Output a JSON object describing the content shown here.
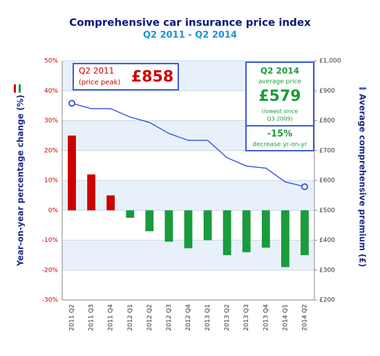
{
  "chart_data": {
    "type": "bar-line",
    "title": "Comprehensive car insurance price index",
    "subtitle": "Q2 2011 - Q2 2014",
    "y_label": "Year-on-year percentage change (%)",
    "y2_label": "Average comprehensive premium (£)",
    "categories": [
      "2011 Q2",
      "2011 Q3",
      "2011 Q4",
      "2012 Q1",
      "2012 Q2",
      "2012 Q3",
      "2012 Q4",
      "2013 Q1",
      "2013 Q2",
      "2013 Q3",
      "2013 Q4",
      "2014 Q1",
      "2014 Q2"
    ],
    "series": [
      {
        "type": "bar",
        "color": "#cc0000",
        "negative_color": "#1a9b3c",
        "values": [
          25,
          12,
          5,
          -2.5,
          -7,
          -10.5,
          -12.7,
          -10,
          -15,
          -14,
          -12.5,
          -19,
          -15
        ]
      },
      {
        "type": "line",
        "axis": "y2",
        "color": "#3b5bdb",
        "values": [
          858,
          840,
          840,
          812,
          794,
          757,
          734,
          734,
          676,
          648,
          641,
          595,
          579
        ]
      }
    ],
    "ylim": [
      -30,
      50
    ],
    "yticks": [
      {
        "value": -30,
        "label": "-30%"
      },
      {
        "value": -20,
        "label": "-20%"
      },
      {
        "value": -10,
        "label": "-10%"
      },
      {
        "value": 0,
        "label": "0%"
      },
      {
        "value": 10,
        "label": "10%"
      },
      {
        "value": 20,
        "label": "20%"
      },
      {
        "value": 30,
        "label": "30%"
      },
      {
        "value": 40,
        "label": "40%"
      },
      {
        "value": 50,
        "label": "50%"
      }
    ],
    "y2lim": [
      200,
      1000
    ],
    "y2ticks": [
      {
        "value": 200,
        "label": "£200"
      },
      {
        "value": 300,
        "label": "£300"
      },
      {
        "value": 400,
        "label": "£400"
      },
      {
        "value": 500,
        "label": "£500"
      },
      {
        "value": 600,
        "label": "£600"
      },
      {
        "value": 700,
        "label": "£700"
      },
      {
        "value": 800,
        "label": "£800"
      },
      {
        "value": 900,
        "label": "£900"
      },
      {
        "value": 1000,
        "label": "£1,000"
      }
    ],
    "annotations": {
      "peak": {
        "period": "Q2 2011",
        "note": "(price peak)",
        "price": "£858"
      },
      "latest": {
        "period": "Q2 2014",
        "note": "average price",
        "price": "£579",
        "detail1": "(lowest since",
        "detail2": "Q3 2009)",
        "change": "-15%",
        "change_note": "decrease yr-on-yr"
      }
    }
  }
}
